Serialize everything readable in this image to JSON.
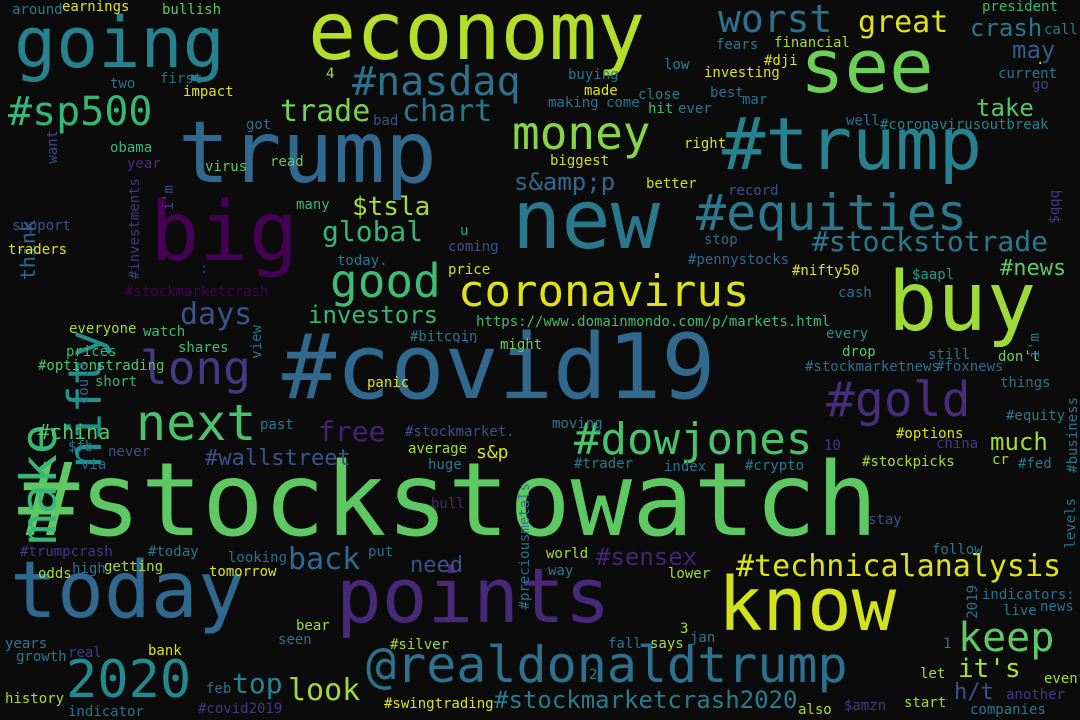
{
  "words": [
    {
      "text": "#stockstowatch",
      "color": "#5ec962"
    },
    {
      "text": "#covid19",
      "color": "#31688e"
    },
    {
      "text": "trump",
      "color": "#31688e"
    },
    {
      "text": "economy",
      "color": "#b5de2b"
    },
    {
      "text": "going",
      "color": "#26828e"
    },
    {
      "text": "new",
      "color": "#2a788e"
    },
    {
      "text": "today",
      "color": "#31688e"
    },
    {
      "text": "points",
      "color": "#482878"
    },
    {
      "text": "buy",
      "color": "#a0da39"
    },
    {
      "text": "#trump",
      "color": "#26828e"
    },
    {
      "text": "big",
      "color": "#440154"
    },
    {
      "text": "see",
      "color": "#6ece58"
    },
    {
      "text": "know",
      "color": "#d2e21b"
    },
    {
      "text": "@realdonaldtrump",
      "color": "#2c728e"
    },
    {
      "text": "coronavirus",
      "color": "#dde318"
    },
    {
      "text": "#equities",
      "color": "#2a788e"
    },
    {
      "text": "money",
      "color": "#86d549"
    },
    {
      "text": "#nasdaq",
      "color": "#2c728e"
    },
    {
      "text": "#sp500",
      "color": "#35b779"
    },
    {
      "text": "nifty",
      "color": "#21918c"
    },
    {
      "text": "make",
      "color": "#37b878"
    },
    {
      "text": "next",
      "color": "#4ac16d"
    },
    {
      "text": "good",
      "color": "#3fbc73"
    },
    {
      "text": "long",
      "color": "#443983"
    },
    {
      "text": "#dowjones",
      "color": "#4ac16d"
    },
    {
      "text": "#gold",
      "color": "#472d7b"
    },
    {
      "text": "2020",
      "color": "#23898e"
    },
    {
      "text": "#technicalanalysis",
      "color": "#dde318"
    },
    {
      "text": "keep",
      "color": "#5ec962"
    },
    {
      "text": "worst",
      "color": "#2c728e"
    },
    {
      "text": "great",
      "color": "#dde318"
    },
    {
      "text": "crash",
      "color": "#2a788e"
    },
    {
      "text": "chart",
      "color": "#2a788e"
    },
    {
      "text": "trade",
      "color": "#7ad151"
    },
    {
      "text": "back",
      "color": "#31688e"
    },
    {
      "text": "look",
      "color": "#9fda3a"
    },
    {
      "text": "top",
      "color": "#25858e"
    },
    {
      "text": "free",
      "color": "#482173"
    },
    {
      "text": "#stockmarketcrash2020",
      "color": "#287c8e"
    },
    {
      "text": "#stockstotrade",
      "color": "#2a788e"
    },
    {
      "text": "s&amp;p",
      "color": "#31688e"
    },
    {
      "text": "$tsla",
      "color": "#a8db34"
    },
    {
      "text": "global",
      "color": "#35b779"
    },
    {
      "text": "days",
      "color": "#3b528b"
    },
    {
      "text": "investors",
      "color": "#35b779"
    },
    {
      "text": "take",
      "color": "#54c568"
    },
    {
      "text": "may",
      "color": "#375a8c"
    },
    {
      "text": "#news",
      "color": "#5ec962"
    },
    {
      "text": "much",
      "color": "#a0da39"
    },
    {
      "text": "it's",
      "color": "#b5de2b"
    },
    {
      "text": "h/t",
      "color": "#3b528b"
    },
    {
      "text": "#sensex",
      "color": "#482475"
    },
    {
      "text": "#wallstreet",
      "color": "#3b528b"
    },
    {
      "text": "need",
      "color": "#3b528b"
    },
    {
      "text": "#china",
      "color": "#54c568"
    },
    {
      "text": "s&p",
      "color": "#d8e219"
    },
    {
      "text": "think",
      "color": "#31688e"
    },
    {
      "text": "https://www.domainmondo.com/p/markets.html",
      "color": "#3fbc73"
    },
    {
      "text": "#bitcoin",
      "color": "#2a788e"
    },
    {
      "text": "...",
      "color": "#3b528b"
    },
    {
      "text": "might",
      "color": "#6ece58"
    },
    {
      "text": "obama",
      "color": "#35b779"
    },
    {
      "text": "virus",
      "color": "#5ec962"
    },
    {
      "text": "read",
      "color": "#5ec962"
    },
    {
      "text": "year",
      "color": "#472d7b"
    },
    {
      "text": "i'm",
      "color": "#404688"
    },
    {
      "text": "many",
      "color": "#37b878"
    },
    {
      "text": "u",
      "color": "#21a685"
    },
    {
      "text": "today.",
      "color": "#2a788e"
    },
    {
      "text": "coming",
      "color": "#3b528b"
    },
    {
      "text": "price",
      "color": "#d0e11c"
    },
    {
      "text": "#stockmarketcrash",
      "color": "#440154"
    },
    {
      "text": "everyone",
      "color": "#a0da39"
    },
    {
      "text": "watch",
      "color": "#3fbc73"
    },
    {
      "text": "shares",
      "color": "#3fbc73"
    },
    {
      "text": "view",
      "color": "#2c728e"
    },
    {
      "text": "prices",
      "color": "#37b878"
    },
    {
      "text": "#optionstrading",
      "color": "#54c568"
    },
    {
      "text": "short",
      "color": "#35b779"
    },
    {
      "text": "could",
      "color": "#31688e"
    },
    {
      "text": "panic",
      "color": "#dde318"
    },
    {
      "text": "#stockmarketnews",
      "color": "#2c728e"
    },
    {
      "text": "#foxnews",
      "color": "#31688e"
    },
    {
      "text": "things",
      "color": "#2c728e"
    },
    {
      "text": "#equity",
      "color": "#2a788e"
    },
    {
      "text": "don't",
      "color": "#6ece58"
    },
    {
      "text": "i'm",
      "color": "#2a788e"
    },
    {
      "text": "still",
      "color": "#2c728e"
    },
    {
      "text": "drop",
      "color": "#5ec962"
    },
    {
      "text": "every",
      "color": "#21918c"
    },
    {
      "text": "cash",
      "color": "#2c728e"
    },
    {
      "text": "$aapl",
      "color": "#1f9e89"
    },
    {
      "text": "#nifty50",
      "color": "#dde318"
    },
    {
      "text": "#pennystocks",
      "color": "#31688e"
    },
    {
      "text": "stop",
      "color": "#31688e"
    },
    {
      "text": "record",
      "color": "#3b528b"
    },
    {
      "text": "better",
      "color": "#d0e11c"
    },
    {
      "text": "biggest",
      "color": "#d0e11c"
    },
    {
      "text": "right",
      "color": "#dde318"
    },
    {
      "text": "#coronavirusoutbreak",
      "color": "#26828e"
    },
    {
      "text": "well",
      "color": "#2c728e"
    },
    {
      "text": "ever",
      "color": "#2a788e"
    },
    {
      "text": "hit",
      "color": "#3fbc73"
    },
    {
      "text": "close",
      "color": "#287c8e"
    },
    {
      "text": "come",
      "color": "#2c728e"
    },
    {
      "text": "making",
      "color": "#2c728e"
    },
    {
      "text": "made",
      "color": "#dde318"
    },
    {
      "text": "buying",
      "color": "#2a788e"
    },
    {
      "text": "best",
      "color": "#2c728e"
    },
    {
      "text": "mar",
      "color": "#2c728e"
    },
    {
      "text": "low",
      "color": "#26828e"
    },
    {
      "text": "investing",
      "color": "#dde318"
    },
    {
      "text": "#dji",
      "color": "#dde318"
    },
    {
      "text": "fears",
      "color": "#2a788e"
    },
    {
      "text": "financial",
      "color": "#a8db34"
    },
    {
      "text": "current",
      "color": "#2a788e"
    },
    {
      "text": "go",
      "color": "#404688"
    },
    {
      "text": ".",
      "color": "#dde318"
    },
    {
      "text": "call",
      "color": "#2a788e"
    },
    {
      "text": "president",
      "color": "#37b878"
    },
    {
      "text": "earnings",
      "color": "#dde318"
    },
    {
      "text": "around",
      "color": "#2a788e"
    },
    {
      "text": "bullish",
      "color": "#5ec962"
    },
    {
      "text": "first",
      "color": "#2c728e"
    },
    {
      "text": "two",
      "color": "#2c728e"
    },
    {
      "text": "impact",
      "color": "#dde318"
    },
    {
      "text": "got",
      "color": "#2c728e"
    },
    {
      "text": "bad",
      "color": "#3b528b"
    },
    {
      "text": "4",
      "color": "#a0da39"
    },
    {
      "text": "want",
      "color": "#404688"
    },
    {
      "text": "#investments",
      "color": "#443983"
    },
    {
      "text": "support",
      "color": "#3b528b"
    },
    {
      "text": "traders",
      "color": "#dde318"
    },
    {
      "text": ":",
      "color": "#443983"
    },
    {
      "text": "$fb",
      "color": "#2c728e"
    },
    {
      "text": "via",
      "color": "#31688e"
    },
    {
      "text": "never",
      "color": "#3b528b"
    },
    {
      "text": "past",
      "color": "#2a788e"
    },
    {
      "text": "#stockmarket.",
      "color": "#3b528b"
    },
    {
      "text": "average",
      "color": "#a8db34"
    },
    {
      "text": "huge",
      "color": "#2a788e"
    },
    {
      "text": "moving",
      "color": "#2a788e"
    },
    {
      "text": "#trader",
      "color": "#2a788e"
    },
    {
      "text": "index",
      "color": "#2c728e"
    },
    {
      "text": "#crypto",
      "color": "#2a788e"
    },
    {
      "text": "10",
      "color": "#443983"
    },
    {
      "text": "china",
      "color": "#443983"
    },
    {
      "text": "#options",
      "color": "#dde318"
    },
    {
      "text": "#stockpicks",
      "color": "#a8db34"
    },
    {
      "text": "cr",
      "color": "#a8db34"
    },
    {
      "text": "#fed",
      "color": "#2a788e"
    },
    {
      "text": "#business",
      "color": "#2a788e"
    },
    {
      "text": "levels",
      "color": "#2c728e"
    },
    {
      "text": "bull",
      "color": "#482878"
    },
    {
      "text": "#preciousmetals",
      "color": "#2c728e"
    },
    {
      "text": "stay",
      "color": "#3b528b"
    },
    {
      "text": "#trumpcrash",
      "color": "#443983"
    },
    {
      "text": "#today",
      "color": "#2a788e"
    },
    {
      "text": "looking",
      "color": "#2c728e"
    },
    {
      "text": "put",
      "color": "#2c728e"
    },
    {
      "text": "world",
      "color": "#a8db34"
    },
    {
      "text": "way",
      "color": "#2a788e"
    },
    {
      "text": "follow",
      "color": "#2a788e"
    },
    {
      "text": "odds",
      "color": "#a8db34"
    },
    {
      "text": "high",
      "color": "#2c728e"
    },
    {
      "text": "getting",
      "color": "#a8db34"
    },
    {
      "text": "tomorrow",
      "color": "#dde318"
    },
    {
      "text": "lower",
      "color": "#a8db34"
    },
    {
      "text": "indicators:",
      "color": "#2c728e"
    },
    {
      "text": "2019",
      "color": "#2c728e"
    },
    {
      "text": "live",
      "color": "#2a788e"
    },
    {
      "text": "news",
      "color": "#2a788e"
    },
    {
      "text": "bear",
      "color": "#a8db34"
    },
    {
      "text": "seen",
      "color": "#2c728e"
    },
    {
      "text": "years",
      "color": "#2a788e"
    },
    {
      "text": "growth",
      "color": "#2a788e"
    },
    {
      "text": "real",
      "color": "#443983"
    },
    {
      "text": "bank",
      "color": "#dde318"
    },
    {
      "text": "#silver",
      "color": "#a8db34"
    },
    {
      "text": "fall",
      "color": "#2c728e"
    },
    {
      "text": "says",
      "color": "#a8db34"
    },
    {
      "text": "3",
      "color": "#a8db34"
    },
    {
      "text": "jan",
      "color": "#2a788e"
    },
    {
      "text": "1",
      "color": "#2a788e"
    },
    {
      "text": "let",
      "color": "#a8db34"
    },
    {
      "text": "even",
      "color": "#a8db34"
    },
    {
      "text": "history",
      "color": "#a8db34"
    },
    {
      "text": "indicator",
      "color": "#2c728e"
    },
    {
      "text": "feb",
      "color": "#2c728e"
    },
    {
      "text": "#covid2019",
      "color": "#443983"
    },
    {
      "text": "#swingtrading",
      "color": "#dde318"
    },
    {
      "text": "2",
      "color": "#2a788e"
    },
    {
      "text": "also",
      "color": "#a8db34"
    },
    {
      "text": "$amzn",
      "color": "#443983"
    },
    {
      "text": "start",
      "color": "#a8db34"
    },
    {
      "text": "another",
      "color": "#443983"
    },
    {
      "text": "companies",
      "color": "#2a788e"
    },
    {
      "text": "$qqq",
      "color": "#443983"
    }
  ]
}
